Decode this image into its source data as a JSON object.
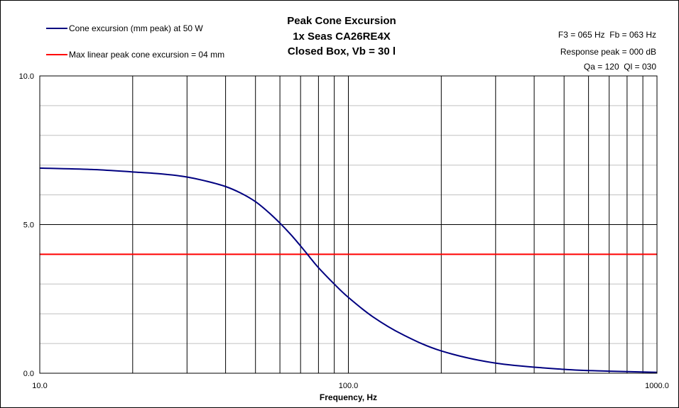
{
  "chart_data": {
    "type": "line",
    "title": [
      "Peak Cone Excursion",
      "1x Seas CA26RE4X",
      "Closed Box, Vb = 30 l"
    ],
    "xlabel": "Frequency, Hz",
    "ylabel": "",
    "x_scale": "log",
    "xlim": [
      10,
      1000
    ],
    "ylim": [
      0,
      10
    ],
    "x_ticks": [
      10,
      100,
      1000
    ],
    "x_tick_labels": [
      "10.0",
      "100.0",
      "1000.0"
    ],
    "y_ticks": [
      0,
      5,
      10
    ],
    "y_tick_labels": [
      "0.0",
      "5.0",
      "10.0"
    ],
    "grid": true,
    "legend_position": "top-left",
    "series": [
      {
        "name": "Cone excursion (mm peak) at 50 W",
        "color": "#000080",
        "x": [
          10,
          15,
          20,
          25,
          30,
          35,
          40,
          45,
          50,
          55,
          60,
          65,
          70,
          75,
          80,
          90,
          100,
          120,
          150,
          200,
          300,
          500,
          700,
          1000
        ],
        "y": [
          6.9,
          6.85,
          6.77,
          6.7,
          6.6,
          6.45,
          6.28,
          6.05,
          5.77,
          5.42,
          5.05,
          4.67,
          4.28,
          3.9,
          3.55,
          3.0,
          2.55,
          1.9,
          1.3,
          0.75,
          0.34,
          0.13,
          0.07,
          0.03
        ]
      },
      {
        "name": "Max linear peak cone excursion = 04 mm",
        "color": "#ff0000",
        "x": [
          10,
          1000
        ],
        "y": [
          4,
          4
        ]
      }
    ],
    "annotations": [
      "F3 = 065 Hz  Fb = 063 Hz",
      "Response peak = 000 dB",
      "Qa = 120  Ql = 030"
    ]
  }
}
